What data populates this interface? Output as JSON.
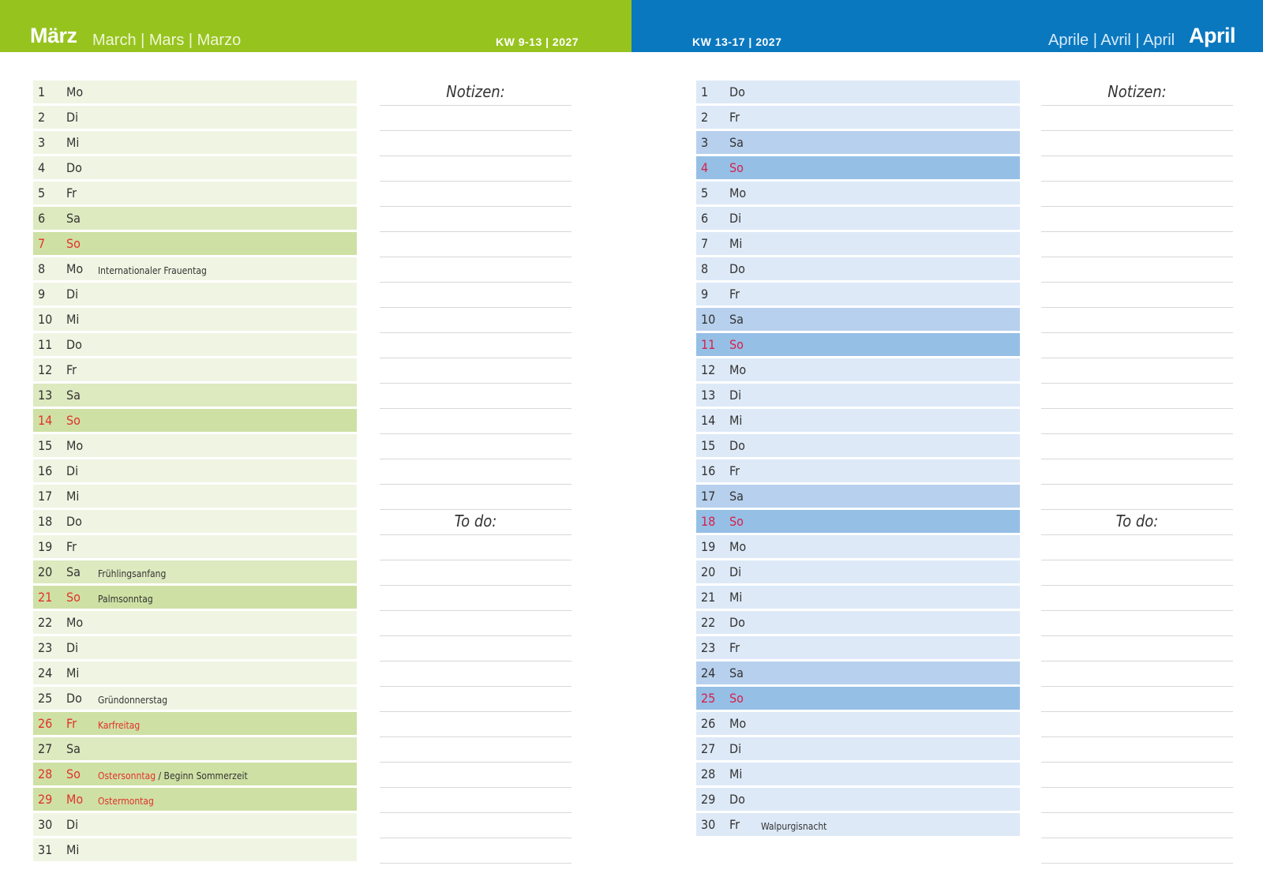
{
  "left": {
    "month": "März",
    "other_languages": "March | Mars | Marzo",
    "kw": "KW 9-13 | 2027",
    "notes_title": "Notizen:",
    "todo_title": "To do:",
    "days": [
      {
        "num": "1",
        "name": "Mo",
        "shade": 0
      },
      {
        "num": "2",
        "name": "Di",
        "shade": 0
      },
      {
        "num": "3",
        "name": "Mi",
        "shade": 0
      },
      {
        "num": "4",
        "name": "Do",
        "shade": 0
      },
      {
        "num": "5",
        "name": "Fr",
        "shade": 0
      },
      {
        "num": "6",
        "name": "Sa",
        "shade": 1
      },
      {
        "num": "7",
        "name": "So",
        "shade": 2,
        "red": true
      },
      {
        "num": "8",
        "name": "Mo",
        "shade": 0,
        "event": "Internationaler Frauentag"
      },
      {
        "num": "9",
        "name": "Di",
        "shade": 0
      },
      {
        "num": "10",
        "name": "Mi",
        "shade": 0
      },
      {
        "num": "11",
        "name": "Do",
        "shade": 0
      },
      {
        "num": "12",
        "name": "Fr",
        "shade": 0
      },
      {
        "num": "13",
        "name": "Sa",
        "shade": 1
      },
      {
        "num": "14",
        "name": "So",
        "shade": 2,
        "red": true
      },
      {
        "num": "15",
        "name": "Mo",
        "shade": 0
      },
      {
        "num": "16",
        "name": "Di",
        "shade": 0
      },
      {
        "num": "17",
        "name": "Mi",
        "shade": 0
      },
      {
        "num": "18",
        "name": "Do",
        "shade": 0
      },
      {
        "num": "19",
        "name": "Fr",
        "shade": 0
      },
      {
        "num": "20",
        "name": "Sa",
        "shade": 1,
        "event": "Frühlingsanfang"
      },
      {
        "num": "21",
        "name": "So",
        "shade": 2,
        "red": true,
        "event": "Palmsonntag"
      },
      {
        "num": "22",
        "name": "Mo",
        "shade": 0
      },
      {
        "num": "23",
        "name": "Di",
        "shade": 0
      },
      {
        "num": "24",
        "name": "Mi",
        "shade": 0
      },
      {
        "num": "25",
        "name": "Do",
        "shade": 0,
        "event": "Gründonnerstag"
      },
      {
        "num": "26",
        "name": "Fr",
        "shade": 2,
        "red": true,
        "event": "Karfreitag",
        "event_red": true
      },
      {
        "num": "27",
        "name": "Sa",
        "shade": 1
      },
      {
        "num": "28",
        "name": "So",
        "shade": 2,
        "red": true,
        "event": "Ostersonntag",
        "event_red": true,
        "event2": " / Beginn Sommerzeit"
      },
      {
        "num": "29",
        "name": "Mo",
        "shade": 2,
        "red": true,
        "event": "Ostermontag",
        "event_red": true
      },
      {
        "num": "30",
        "name": "Di",
        "shade": 0
      },
      {
        "num": "31",
        "name": "Mi",
        "shade": 0
      }
    ]
  },
  "right": {
    "month": "April",
    "other_languages": "Aprile | Avril | April",
    "kw": "KW 13-17 | 2027",
    "notes_title": "Notizen:",
    "todo_title": "To do:",
    "days": [
      {
        "num": "1",
        "name": "Do",
        "shade": 0
      },
      {
        "num": "2",
        "name": "Fr",
        "shade": 0
      },
      {
        "num": "3",
        "name": "Sa",
        "shade": 1
      },
      {
        "num": "4",
        "name": "So",
        "shade": 2,
        "red": true
      },
      {
        "num": "5",
        "name": "Mo",
        "shade": 0
      },
      {
        "num": "6",
        "name": "Di",
        "shade": 0
      },
      {
        "num": "7",
        "name": "Mi",
        "shade": 0
      },
      {
        "num": "8",
        "name": "Do",
        "shade": 0
      },
      {
        "num": "9",
        "name": "Fr",
        "shade": 0
      },
      {
        "num": "10",
        "name": "Sa",
        "shade": 1
      },
      {
        "num": "11",
        "name": "So",
        "shade": 2,
        "red": true
      },
      {
        "num": "12",
        "name": "Mo",
        "shade": 0
      },
      {
        "num": "13",
        "name": "Di",
        "shade": 0
      },
      {
        "num": "14",
        "name": "Mi",
        "shade": 0
      },
      {
        "num": "15",
        "name": "Do",
        "shade": 0
      },
      {
        "num": "16",
        "name": "Fr",
        "shade": 0
      },
      {
        "num": "17",
        "name": "Sa",
        "shade": 1
      },
      {
        "num": "18",
        "name": "So",
        "shade": 2,
        "red": true
      },
      {
        "num": "19",
        "name": "Mo",
        "shade": 0
      },
      {
        "num": "20",
        "name": "Di",
        "shade": 0
      },
      {
        "num": "21",
        "name": "Mi",
        "shade": 0
      },
      {
        "num": "22",
        "name": "Do",
        "shade": 0
      },
      {
        "num": "23",
        "name": "Fr",
        "shade": 0
      },
      {
        "num": "24",
        "name": "Sa",
        "shade": 1
      },
      {
        "num": "25",
        "name": "So",
        "shade": 2,
        "red": true
      },
      {
        "num": "26",
        "name": "Mo",
        "shade": 0
      },
      {
        "num": "27",
        "name": "Di",
        "shade": 0
      },
      {
        "num": "28",
        "name": "Mi",
        "shade": 0
      },
      {
        "num": "29",
        "name": "Do",
        "shade": 0
      },
      {
        "num": "30",
        "name": "Fr",
        "shade": 0,
        "event": "Walpurgisnacht"
      }
    ]
  },
  "colors": {
    "march_header": "#97c31f",
    "april_header": "#0a78bf",
    "holiday_red": "#e0322b"
  }
}
